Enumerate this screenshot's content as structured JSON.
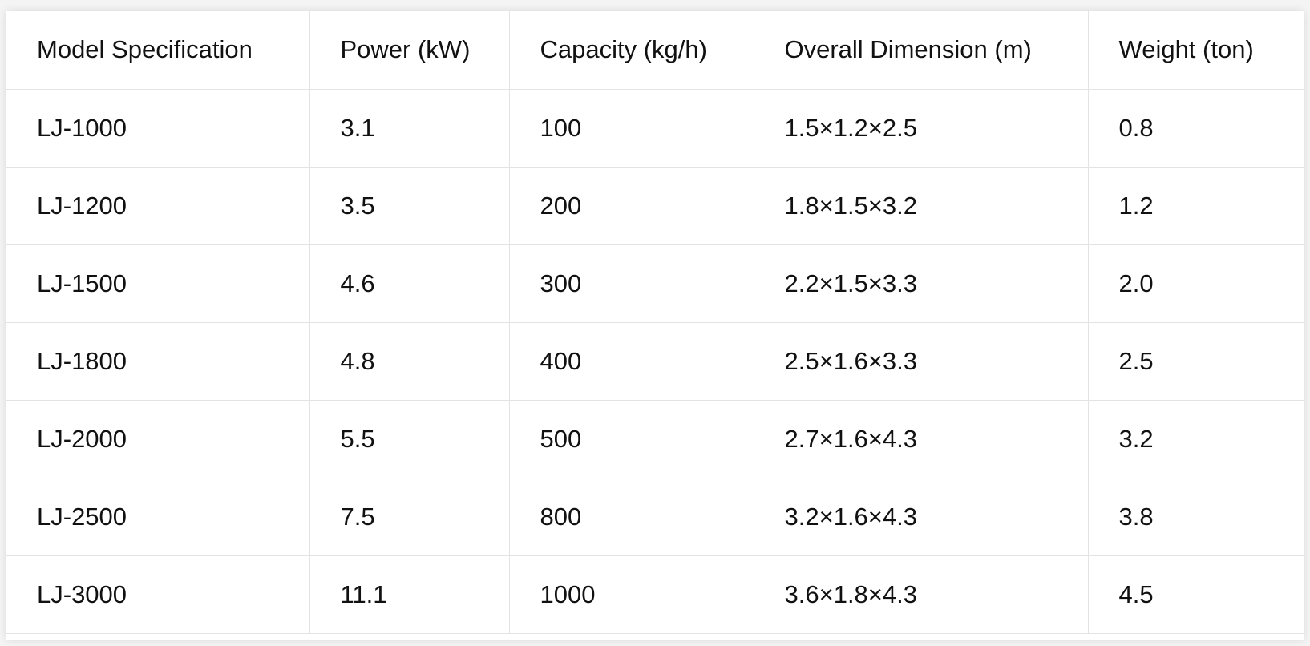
{
  "table": {
    "headers": [
      "Model Specification",
      "Power (kW)",
      "Capacity (kg/h)",
      "Overall Dimension (m)",
      "Weight (ton)"
    ],
    "rows": [
      [
        "LJ-1000",
        "3.1",
        "100",
        "1.5×1.2×2.5",
        "0.8"
      ],
      [
        "LJ-1200",
        "3.5",
        "200",
        "1.8×1.5×3.2",
        "1.2"
      ],
      [
        "LJ-1500",
        "4.6",
        "300",
        "2.2×1.5×3.3",
        "2.0"
      ],
      [
        "LJ-1800",
        "4.8",
        "400",
        "2.5×1.6×3.3",
        "2.5"
      ],
      [
        "LJ-2000",
        "5.5",
        "500",
        "2.7×1.6×4.3",
        "3.2"
      ],
      [
        "LJ-2500",
        "7.5",
        "800",
        "3.2×1.6×4.3",
        "3.8"
      ],
      [
        "LJ-3000",
        "11.1",
        "1000",
        "3.6×1.8×4.3",
        "4.5"
      ]
    ]
  }
}
